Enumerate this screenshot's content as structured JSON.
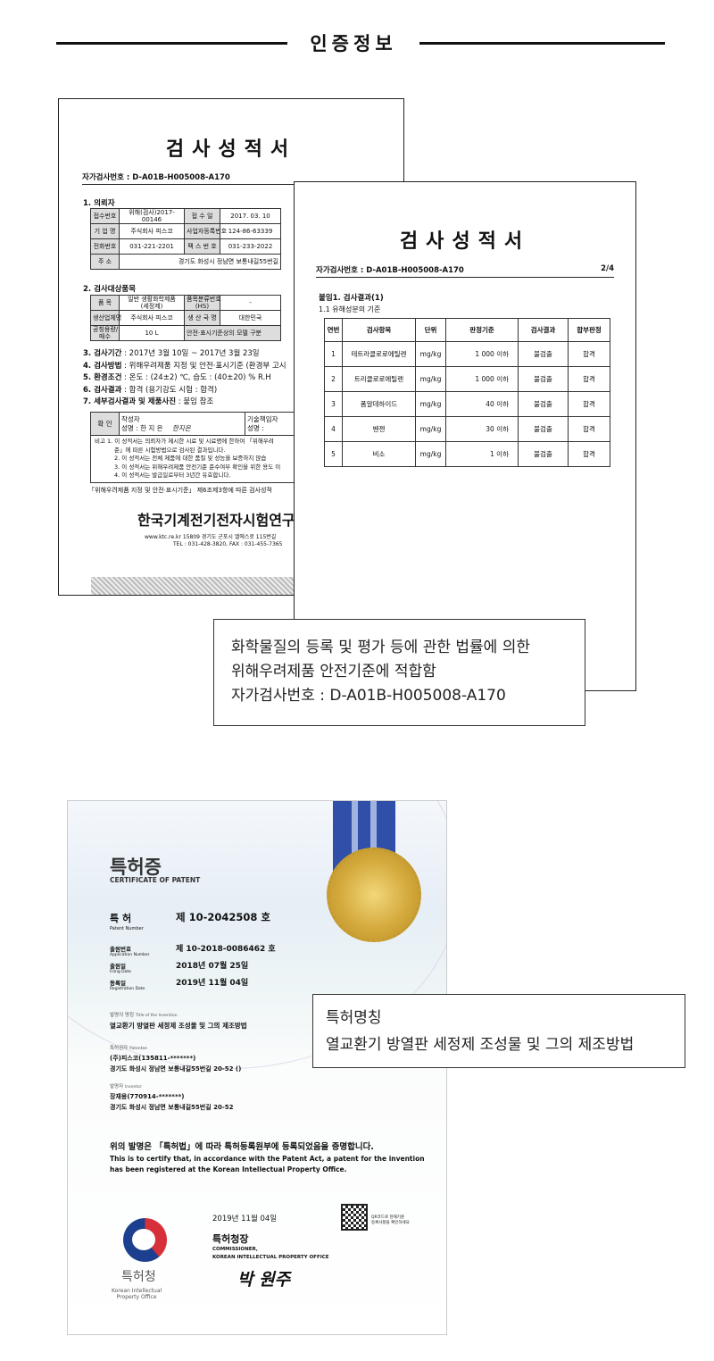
{
  "section_title": "인증정보",
  "report1": {
    "title": "검사성적서",
    "number": "자가검사번호 : D-A01B-H005008-A170",
    "s1": "1. 의뢰자",
    "client_rows": [
      [
        "접수번호",
        "위해(검사)2017-00146",
        "접 수 일",
        "2017. 03. 10"
      ],
      [
        "기 업 명",
        "주식회사 피스코",
        "사업자등록번호",
        "124-86-63339"
      ],
      [
        "전화번호",
        "031-221-2201",
        "팩 스 번 호",
        "031-233-2022"
      ],
      [
        "주 소",
        "경기도 화성시 정남면 보통내길55번길",
        "",
        ""
      ]
    ],
    "s2": "2. 검사대상품목",
    "item_rows": [
      [
        "품 목",
        "일반 생활화학제품 (세정제)",
        "품목분류번호(HS)",
        "-"
      ],
      [
        "생산업체명",
        "주식회사 피스코",
        "생 산 국 명",
        "대한민국"
      ],
      [
        "공칭용량/매수",
        "10 L",
        "안전·표시기준상의 모델 구분",
        ""
      ]
    ],
    "lines": [
      {
        "k": "3. 검사기간",
        "v": " : 2017년 3월 10일 ~ 2017년 3월 23일"
      },
      {
        "k": "4. 검사방법",
        "v": " : 위해우려제품 지정 및 안전·표시기준 (환경부 고시"
      },
      {
        "k": "5. 환경조건",
        "v": " : 온도 : (24±2) ℃, 습도 : (40±20) % R.H"
      },
      {
        "k": "6. 검사결과",
        "v": " : 합격 (용기강도 시험 : 합격)"
      },
      {
        "k": "7. 세부검사결과 및 제품사진",
        "v": " : 붙임 참조"
      }
    ],
    "confirm": {
      "label": "확 인",
      "writer": "작성자",
      "name": "성명 :   한 지 은",
      "sign": "한지은",
      "tech": "기술책임자",
      "tech_name": "성명 :"
    },
    "notes": [
      "비고 1. 이 성적서는 의뢰자가 제시한 시료 및 시료명에 한하여 「위해우려",
      "준」에 따른 시험방법으로 검사된 결과입니다.",
      "2. 이 성적서는 전체 제품에 대한 품질 및 성능을 보증하지 않습",
      "3. 이 성적서는 위해우려제품 안전기준 준수여부 확인을 위한 용도 이",
      "4. 이 성적서는 발급일로부터 3년간 유효합니다."
    ],
    "basis": "「위해우려제품 지정 및 안전·표시기준」 제6조제3항에 따른 검사성적",
    "org": "한국기계전기전자시험연구",
    "address": "www.ktc.re.kr 15809 경기도 군포시 엘에스로 115번길",
    "tel": "TEL : 031-428-3820, FAX : 031-455-7365"
  },
  "report2": {
    "title": "검사성적서",
    "number": "자가검사번호 : D-A01B-H005008-A170",
    "page": "2/4",
    "attach": "붙임1. 검사결과(1)",
    "sub": "1.1 유해성분의 기준",
    "headers": [
      "연번",
      "검사항목",
      "단위",
      "판정기준",
      "검사결과",
      "합부판정"
    ],
    "rows": [
      [
        "1",
        "테트라클로로에틸렌",
        "mg/kg",
        "1 000 이하",
        "불검출",
        "합격"
      ],
      [
        "2",
        "트리클로로에틸렌",
        "mg/kg",
        "1 000 이하",
        "불검출",
        "합격"
      ],
      [
        "3",
        "폼알데하이드",
        "mg/kg",
        "40 이하",
        "불검출",
        "합격"
      ],
      [
        "4",
        "벤젠",
        "mg/kg",
        "30 이하",
        "불검출",
        "합격"
      ],
      [
        "5",
        "비소",
        "mg/kg",
        "1 이하",
        "불검출",
        "합격"
      ]
    ]
  },
  "caption1": {
    "lines": [
      "화학물질의 등록 및 평가 등에 관한 법률에 의한",
      "위해우려제품 안전기준에 적합함",
      "자가검사번호 : D-A01B-H005008-A170"
    ]
  },
  "patent": {
    "title": "특허증",
    "title_en": "CERTIFICATE OF PATENT",
    "patent_label": "특 허",
    "patent_label_en": "Patent Number",
    "patent_no": "제 10-2042508 호",
    "app_label": "출원번호",
    "app_label_en": "Application Number",
    "app_no": "제 10-2018-0086462 호",
    "filing_label": "출원일",
    "filing_label_en": "Filing Date",
    "filing_date": "2018년 07월 25일",
    "reg_label": "등록일",
    "reg_label_en": "Registration Date",
    "reg_date": "2019년 11월 04일",
    "invention_label": "발명의 명칭",
    "invention_label_en": "Title of the Invention",
    "invention": "열교환기 방열판 세정제 조성물 및 그의 제조방법",
    "patentee_label": "특허권자",
    "patentee_label_en": "Patentee",
    "patentee": "(주)피스코(135811-*******)",
    "patentee_addr": "경기도 화성시 정남면 보통내길55번길 20-52 ()",
    "inventor_label": "발명자",
    "inventor_label_en": "Inventor",
    "inventor": "장재용(770914-*******)",
    "inventor_addr": "경기도 화성시 정남면 보통내길55번길 20-52",
    "certify_ko": "위의 발명은 「특허법」에 따라 특허등록원부에 등록되었음을 증명합니다.",
    "certify_en1": "This is to certify that, in accordance with the Patent Act, a patent for the invention",
    "certify_en2": "has been registered at the Korean Intellectual Property Office.",
    "date": "2019년 11월 04일",
    "qr_note1": "QR코드로 현재기준",
    "qr_note2": "등록사항을 확인하세요",
    "commissioner": "특허청장",
    "commissioner_en1": "COMMISSIONER,",
    "commissioner_en2": "KOREAN INTELLECTUAL PROPERTY OFFICE",
    "signature": "박 원주",
    "office": "특허청",
    "office_en1": "Korean Intellectual",
    "office_en2": "Property Office",
    "colors": {
      "ribbon": "#2f4fa8",
      "seal": "#c9a23a",
      "logo_blue": "#1d3f8f",
      "logo_red": "#d6303b"
    }
  },
  "caption2": {
    "label": "특허명칭",
    "value": "열교환기 방열판 세정제 조성물 및 그의 제조방법"
  }
}
